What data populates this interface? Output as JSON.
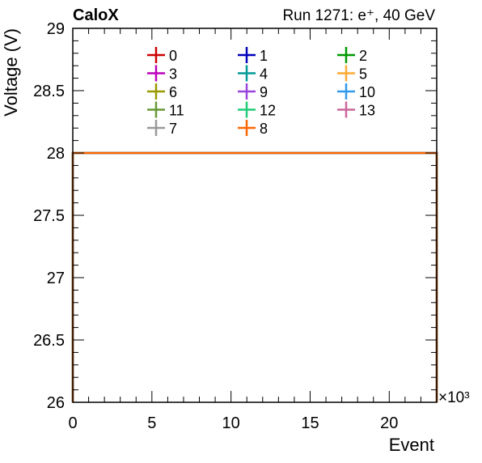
{
  "header": {
    "experiment": "CaloX",
    "run_info": "Run 1271: e⁺, 40 GeV"
  },
  "chart_data": {
    "type": "line",
    "xlabel": "Event",
    "ylabel": "Voltage (V)",
    "x_multiplier": "×10³",
    "xlim": [
      0,
      23
    ],
    "ylim": [
      26,
      29
    ],
    "xticks": [
      0,
      5,
      10,
      15,
      20
    ],
    "yticks": [
      26,
      26.5,
      27,
      27.5,
      28,
      28.5,
      29
    ],
    "ytick_labels": [
      "26",
      "26.5",
      "27",
      "27.5",
      "28",
      "28.5",
      "29"
    ],
    "grid": false,
    "legend_position": "top",
    "series": [
      {
        "name": "0",
        "color": "#cc0000",
        "x": [
          0,
          23
        ],
        "y": [
          28,
          28
        ]
      },
      {
        "name": "1",
        "color": "#0000bb",
        "x": [
          0,
          23
        ],
        "y": [
          28,
          28
        ]
      },
      {
        "name": "2",
        "color": "#009900",
        "x": [
          0,
          23
        ],
        "y": [
          28,
          28
        ]
      },
      {
        "name": "3",
        "color": "#bb00bb",
        "x": [
          0,
          23
        ],
        "y": [
          28,
          28
        ]
      },
      {
        "name": "4",
        "color": "#009999",
        "x": [
          0,
          23
        ],
        "y": [
          28,
          28
        ]
      },
      {
        "name": "5",
        "color": "#ffaa33",
        "x": [
          0,
          23
        ],
        "y": [
          28,
          28
        ]
      },
      {
        "name": "6",
        "color": "#999900",
        "x": [
          0,
          23
        ],
        "y": [
          28,
          28
        ]
      },
      {
        "name": "9",
        "color": "#9944dd",
        "x": [
          0,
          23
        ],
        "y": [
          28,
          28
        ]
      },
      {
        "name": "10",
        "color": "#3399ee",
        "x": [
          0,
          23
        ],
        "y": [
          28,
          28
        ]
      },
      {
        "name": "11",
        "color": "#669933",
        "x": [
          0,
          23
        ],
        "y": [
          28,
          28
        ]
      },
      {
        "name": "12",
        "color": "#22cc77",
        "x": [
          0,
          23
        ],
        "y": [
          28,
          28
        ]
      },
      {
        "name": "13",
        "color": "#cc6699",
        "x": [
          0,
          23
        ],
        "y": [
          28,
          28
        ]
      },
      {
        "name": "7",
        "color": "#999999",
        "x": [
          0,
          23
        ],
        "y": [
          28,
          28
        ]
      },
      {
        "name": "8",
        "color": "#ff6600",
        "x": [
          0,
          23
        ],
        "y": [
          28,
          28
        ]
      }
    ]
  }
}
